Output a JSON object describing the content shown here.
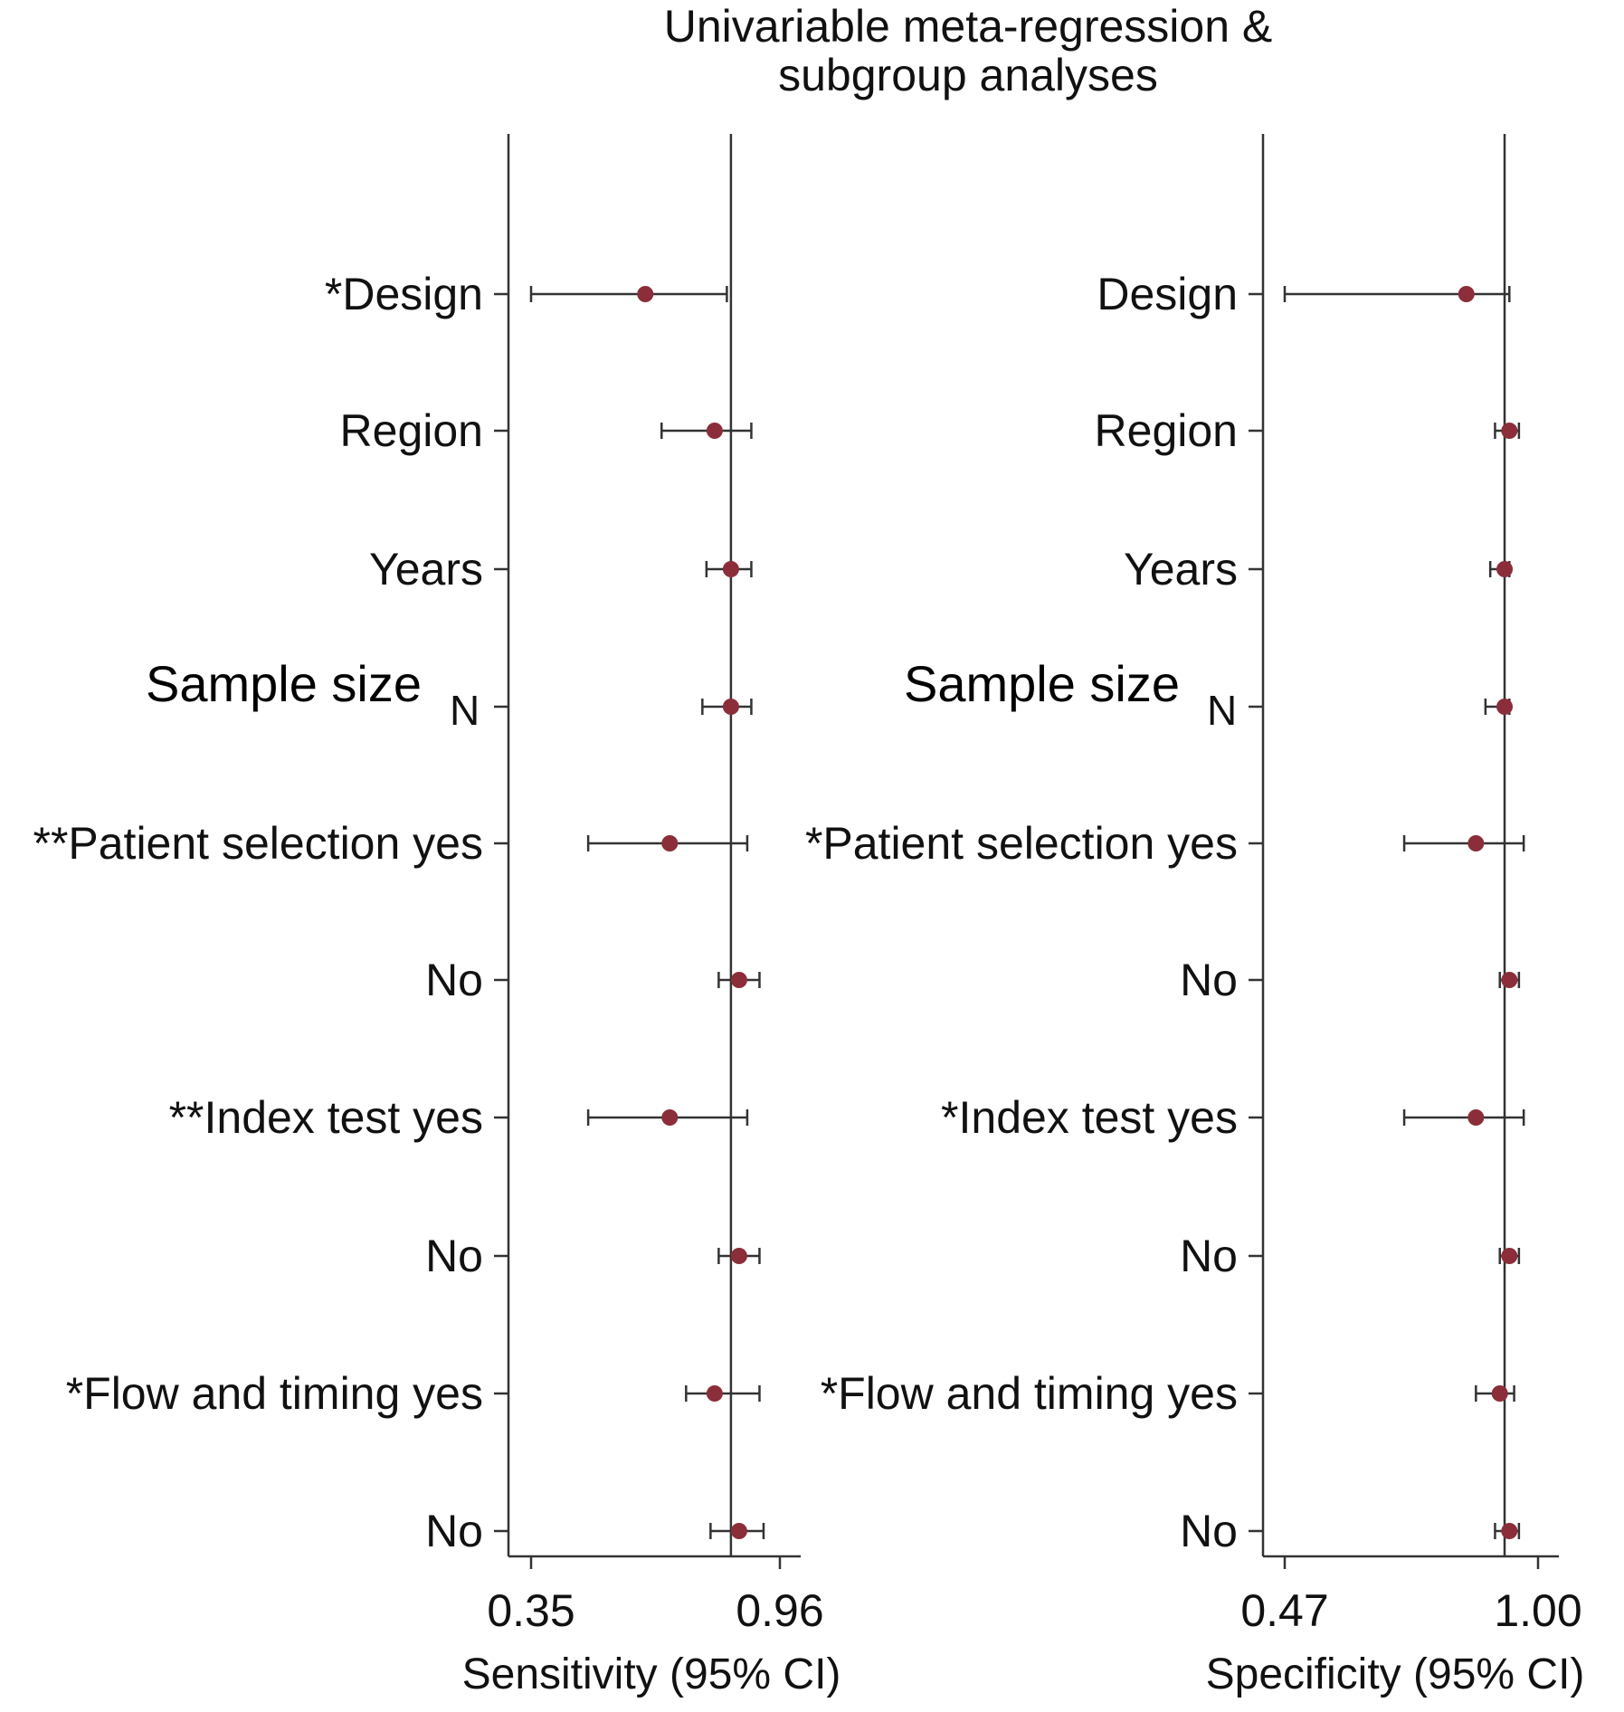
{
  "title": [
    "Univariable meta-regression &",
    "subgroup analyses"
  ],
  "chart_data": [
    {
      "type": "forest",
      "panel": "sensitivity",
      "xlabel": "Sensitivity (95% CI)",
      "xticks": [
        0.35,
        0.96
      ],
      "xtick_labels": [
        "0.35",
        "0.96"
      ],
      "reference_line": 0.84,
      "rows": [
        {
          "label": "*Design",
          "estimate": 0.63,
          "lower": 0.35,
          "upper": 0.83
        },
        {
          "label": "Region",
          "estimate": 0.8,
          "lower": 0.67,
          "upper": 0.89
        },
        {
          "label": "Years",
          "estimate": 0.84,
          "lower": 0.78,
          "upper": 0.89
        },
        {
          "label": "Sample size",
          "label_suffix": "N",
          "estimate": 0.84,
          "lower": 0.77,
          "upper": 0.89
        },
        {
          "label": "**Patient selection yes",
          "estimate": 0.69,
          "lower": 0.49,
          "upper": 0.88
        },
        {
          "label": "No",
          "estimate": 0.86,
          "lower": 0.81,
          "upper": 0.91
        },
        {
          "label": "**Index test yes",
          "estimate": 0.69,
          "lower": 0.49,
          "upper": 0.88
        },
        {
          "label": "No",
          "estimate": 0.86,
          "lower": 0.81,
          "upper": 0.91
        },
        {
          "label": "*Flow and timing yes",
          "estimate": 0.8,
          "lower": 0.73,
          "upper": 0.91
        },
        {
          "label": "No",
          "estimate": 0.86,
          "lower": 0.79,
          "upper": 0.92
        }
      ]
    },
    {
      "type": "forest",
      "panel": "specificity",
      "xlabel": "Specificity (95% CI)",
      "xticks": [
        0.47,
        1.0
      ],
      "xtick_labels": [
        "0.47",
        "1.00"
      ],
      "reference_line": 0.93,
      "rows": [
        {
          "label": "Design",
          "estimate": 0.85,
          "lower": 0.47,
          "upper": 0.94
        },
        {
          "label": "Region",
          "estimate": 0.94,
          "lower": 0.91,
          "upper": 0.96
        },
        {
          "label": "Years",
          "estimate": 0.93,
          "lower": 0.9,
          "upper": 0.94
        },
        {
          "label": "Sample size",
          "label_suffix": "N",
          "estimate": 0.93,
          "lower": 0.89,
          "upper": 0.94
        },
        {
          "label": "*Patient selection yes",
          "estimate": 0.87,
          "lower": 0.72,
          "upper": 0.97
        },
        {
          "label": "No",
          "estimate": 0.94,
          "lower": 0.92,
          "upper": 0.96
        },
        {
          "label": "*Index test yes",
          "estimate": 0.87,
          "lower": 0.72,
          "upper": 0.97
        },
        {
          "label": "No",
          "estimate": 0.94,
          "lower": 0.92,
          "upper": 0.96
        },
        {
          "label": "*Flow and timing yes",
          "estimate": 0.92,
          "lower": 0.87,
          "upper": 0.95
        },
        {
          "label": "No",
          "estimate": 0.94,
          "lower": 0.91,
          "upper": 0.96
        }
      ]
    }
  ],
  "colors": {
    "point": "#8b2e3a",
    "line": "#333333",
    "text": "#111111"
  }
}
